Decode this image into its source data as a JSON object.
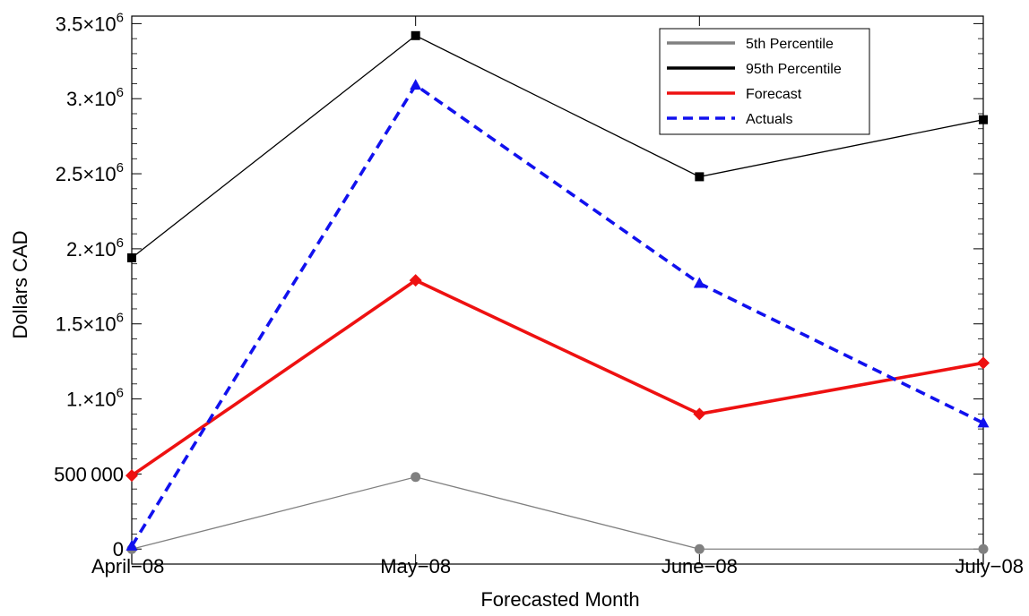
{
  "chart_data": {
    "type": "line",
    "title": "",
    "xlabel": "Forecasted Month",
    "ylabel": "Dollars CAD",
    "categories": [
      "April−08",
      "May−08",
      "June−08",
      "July−08"
    ],
    "ylim": [
      -100000,
      3550000
    ],
    "y_ticks": [
      {
        "value": 0,
        "label": "0"
      },
      {
        "value": 500000,
        "label": "500 000"
      },
      {
        "value": 1000000,
        "label": "1.×10",
        "exp": "6"
      },
      {
        "value": 1500000,
        "label": "1.5×10",
        "exp": "6"
      },
      {
        "value": 2000000,
        "label": "2.×10",
        "exp": "6"
      },
      {
        "value": 2500000,
        "label": "2.5×10",
        "exp": "6"
      },
      {
        "value": 3000000,
        "label": "3.×10",
        "exp": "6"
      },
      {
        "value": 3500000,
        "label": "3.5×10",
        "exp": "6"
      }
    ],
    "grid": false,
    "legend_position": "top-right",
    "series": [
      {
        "name": "5th Percentile",
        "values": [
          0,
          480000,
          0,
          0
        ],
        "color": "#808080",
        "dashed": false,
        "marker": "circle"
      },
      {
        "name": "95th Percentile",
        "values": [
          1940000,
          3420000,
          2480000,
          2860000
        ],
        "color": "#000000",
        "dashed": false,
        "marker": "square"
      },
      {
        "name": "Forecast",
        "values": [
          490000,
          1790000,
          900000,
          1240000
        ],
        "color": "#ee1111",
        "dashed": false,
        "marker": "diamond"
      },
      {
        "name": "Actuals",
        "values": [
          20000,
          3090000,
          1770000,
          840000
        ],
        "color": "#1111ee",
        "dashed": true,
        "marker": "triangle"
      }
    ]
  }
}
